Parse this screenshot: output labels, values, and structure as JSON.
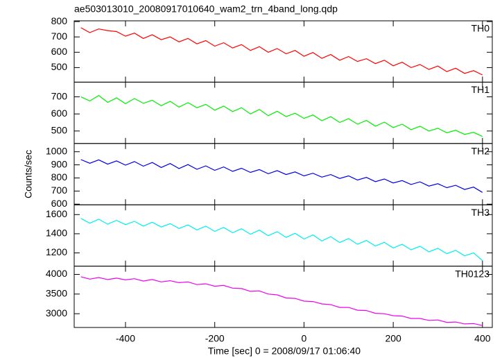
{
  "chart_data": {
    "type": "line",
    "title": "ae503013010_20080917010640_wam2_trn_4band_long.qdp",
    "x_label": "Time [sec] 0 = 2008/09/17 01:06:40",
    "y_label": "Counts/sec",
    "xlim": [
      -515,
      422
    ],
    "xticks": [
      -400,
      -200,
      0,
      200,
      400
    ],
    "x": [
      -500,
      -480,
      -460,
      -440,
      -420,
      -400,
      -380,
      -360,
      -340,
      -320,
      -300,
      -280,
      -260,
      -240,
      -220,
      -200,
      -180,
      -160,
      -140,
      -120,
      -100,
      -80,
      -60,
      -40,
      -20,
      0,
      20,
      40,
      60,
      80,
      100,
      120,
      140,
      160,
      180,
      200,
      220,
      240,
      260,
      280,
      300,
      320,
      340,
      360,
      380,
      400
    ],
    "series": [
      {
        "name": "TH0",
        "color": "#ff0000",
        "ylim": [
          405,
          805
        ],
        "yticks": [
          500,
          600,
          700,
          800
        ],
        "values": [
          760,
          728,
          752,
          741,
          735,
          705,
          725,
          690,
          714,
          682,
          700,
          668,
          690,
          655,
          676,
          640,
          662,
          628,
          650,
          612,
          636,
          600,
          624,
          590,
          612,
          574,
          598,
          560,
          585,
          548,
          572,
          540,
          558,
          526,
          548,
          512,
          535,
          500,
          520,
          488,
          510,
          474,
          496,
          462,
          480,
          452
        ]
      },
      {
        "name": "TH1",
        "color": "#00ee00",
        "ylim": [
          427,
          786
        ],
        "yticks": [
          500,
          600,
          700
        ],
        "values": [
          700,
          676,
          708,
          668,
          694,
          660,
          690,
          662,
          680,
          648,
          674,
          640,
          666,
          636,
          656,
          622,
          646,
          614,
          636,
          600,
          626,
          590,
          616,
          584,
          604,
          574,
          594,
          560,
          584,
          550,
          572,
          540,
          562,
          528,
          552,
          520,
          540,
          508,
          528,
          500,
          516,
          490,
          504,
          480,
          492,
          468
        ]
      },
      {
        "name": "TH2",
        "color": "#0000e6",
        "ylim": [
          595,
          1063
        ],
        "yticks": [
          600,
          700,
          800,
          900,
          1000
        ],
        "values": [
          940,
          912,
          938,
          905,
          930,
          898,
          925,
          890,
          918,
          880,
          910,
          872,
          902,
          866,
          892,
          858,
          884,
          850,
          874,
          842,
          864,
          832,
          856,
          826,
          846,
          816,
          836,
          806,
          826,
          796,
          816,
          784,
          804,
          772,
          792,
          762,
          780,
          750,
          770,
          738,
          756,
          726,
          744,
          712,
          730,
          690
        ]
      },
      {
        "name": "TH3",
        "color": "#00eeee",
        "ylim": [
          1062,
          1702
        ],
        "yticks": [
          1200,
          1400,
          1600
        ],
        "values": [
          1560,
          1510,
          1552,
          1500,
          1540,
          1495,
          1530,
          1480,
          1520,
          1470,
          1505,
          1455,
          1492,
          1440,
          1480,
          1425,
          1466,
          1410,
          1452,
          1395,
          1438,
          1380,
          1422,
          1362,
          1405,
          1345,
          1388,
          1325,
          1370,
          1308,
          1350,
          1290,
          1330,
          1272,
          1310,
          1252,
          1290,
          1232,
          1270,
          1212,
          1248,
          1192,
          1226,
          1170,
          1200,
          1120
        ]
      },
      {
        "name": "TH0123",
        "color": "#ee00ee",
        "ylim": [
          2650,
          4210
        ],
        "yticks": [
          3000,
          3500,
          4000
        ],
        "values": [
          3940,
          3880,
          3920,
          3870,
          3905,
          3860,
          3890,
          3830,
          3870,
          3810,
          3840,
          3790,
          3810,
          3740,
          3760,
          3700,
          3720,
          3650,
          3640,
          3570,
          3580,
          3500,
          3480,
          3400,
          3390,
          3320,
          3310,
          3250,
          3230,
          3160,
          3160,
          3090,
          3080,
          3010,
          3000,
          2950,
          2940,
          2880,
          2880,
          2830,
          2840,
          2780,
          2790,
          2740,
          2750,
          2700
        ]
      }
    ]
  }
}
